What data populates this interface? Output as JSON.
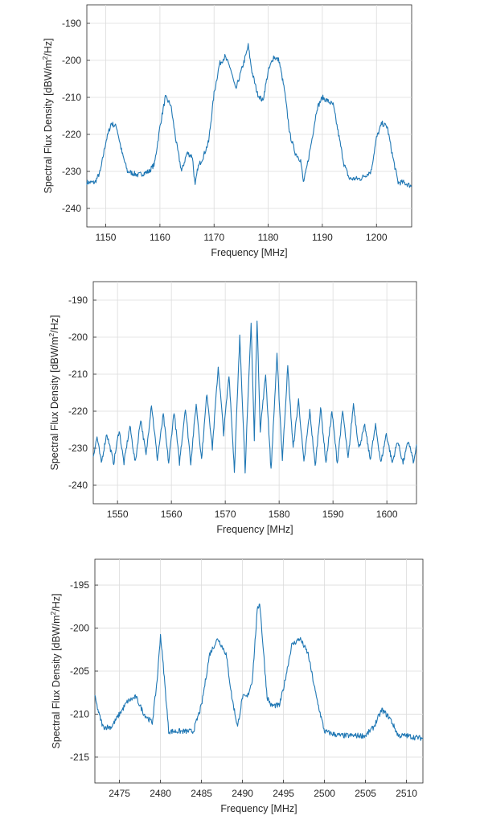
{
  "colors": {
    "trace": "#1f77b4",
    "axis": "#262626",
    "grid": "#dcdcdc"
  },
  "chart_data": [
    {
      "type": "line",
      "xlabel": "Frequency [MHz]",
      "ylabel_pre": "Spectral Flux Density [dBW/m",
      "ylabel_sup": "2",
      "ylabel_post": "/Hz]",
      "xlim": [
        1146.5,
        1206.5
      ],
      "ylim": [
        -245,
        -185
      ],
      "xticks": [
        1150,
        1160,
        1170,
        1180,
        1190,
        1200
      ],
      "yticks": [
        -240,
        -230,
        -220,
        -210,
        -200,
        -190
      ],
      "grid": true,
      "series": [
        {
          "x": [
            1146.5,
            1148,
            1149,
            1150,
            1151,
            1152,
            1153,
            1154,
            1156,
            1158,
            1159,
            1160,
            1161,
            1162,
            1163,
            1164,
            1165,
            1166,
            1166.5,
            1167,
            1168,
            1169,
            1170,
            1171,
            1172,
            1173,
            1174,
            1175,
            1176,
            1176.3,
            1177,
            1178,
            1179,
            1180,
            1181,
            1182,
            1183,
            1184,
            1185,
            1186,
            1186.5,
            1187,
            1188,
            1189,
            1190,
            1191,
            1192,
            1193,
            1194,
            1195,
            1197,
            1199,
            1200,
            1201,
            1202,
            1203,
            1204,
            1205,
            1206.5
          ],
          "y": [
            -233,
            -233,
            -230,
            -222,
            -217,
            -218,
            -225,
            -230,
            -231,
            -230,
            -228,
            -218,
            -210,
            -212,
            -222,
            -230,
            -225,
            -226,
            -234,
            -229,
            -226,
            -222,
            -209,
            -201,
            -199,
            -202,
            -208,
            -203,
            -198,
            -196,
            -203,
            -209,
            -211,
            -203,
            -199,
            -200,
            -208,
            -220,
            -225,
            -227,
            -233,
            -230,
            -222,
            -213,
            -210,
            -211,
            -212,
            -220,
            -228,
            -232,
            -232,
            -230,
            -221,
            -217,
            -218,
            -226,
            -233,
            -233,
            -234
          ]
        }
      ]
    },
    {
      "type": "line",
      "xlabel": "Frequency [MHz]",
      "ylabel_pre": "Spectral Flux Density [dBW/m",
      "ylabel_sup": "2",
      "ylabel_post": "/Hz]",
      "xlim": [
        1545.5,
        1605.5
      ],
      "ylim": [
        -245,
        -185
      ],
      "xticks": [
        1550,
        1560,
        1570,
        1580,
        1590,
        1600
      ],
      "yticks": [
        -240,
        -230,
        -220,
        -210,
        -200,
        -190
      ],
      "grid": true,
      "series": [
        {
          "x": [
            1545.5,
            1546.2,
            1547.0,
            1548.0,
            1549.3,
            1550.3,
            1551.2,
            1552.3,
            1553.3,
            1554.3,
            1555.3,
            1556.3,
            1557.4,
            1558.5,
            1559.5,
            1560.5,
            1561.5,
            1562.6,
            1563.6,
            1564.6,
            1565.6,
            1566.6,
            1567.6,
            1568.7,
            1569.7,
            1570.7,
            1571.7,
            1572.7,
            1573.7,
            1574.8,
            1575.4,
            1575.9,
            1576.5,
            1577.5,
            1578.5,
            1579.6,
            1580.6,
            1581.6,
            1582.6,
            1583.6,
            1584.6,
            1585.7,
            1586.7,
            1587.7,
            1588.7,
            1589.8,
            1590.8,
            1591.8,
            1592.8,
            1593.8,
            1594.8,
            1595.9,
            1596.9,
            1597.9,
            1598.9,
            1599.9,
            1601.0,
            1602.0,
            1603.0,
            1604.0,
            1605.0,
            1605.5
          ],
          "y": [
            -232,
            -227,
            -234,
            -226,
            -234,
            -225,
            -234,
            -224,
            -234,
            -222,
            -232,
            -218,
            -233,
            -221,
            -234,
            -220,
            -234,
            -219,
            -234,
            -218,
            -233,
            -215,
            -230,
            -208,
            -226,
            -210,
            -236,
            -200,
            -236,
            -196,
            -228,
            -195,
            -225,
            -210,
            -236,
            -205,
            -233,
            -208,
            -230,
            -217,
            -234,
            -220,
            -235,
            -219,
            -234,
            -220,
            -234,
            -220,
            -233,
            -218,
            -230,
            -224,
            -233,
            -224,
            -234,
            -226,
            -234,
            -228,
            -234,
            -228,
            -234,
            -229
          ]
        }
      ]
    },
    {
      "type": "line",
      "xlabel": "Frequency [MHz]",
      "ylabel_pre": "Spectral Flux Density [dBW/m",
      "ylabel_sup": "2",
      "ylabel_post": "/Hz]",
      "xlim": [
        2472,
        2512
      ],
      "ylim": [
        -218,
        -192
      ],
      "xticks": [
        2475,
        2480,
        2485,
        2490,
        2495,
        2500,
        2505,
        2510
      ],
      "yticks": [
        -215,
        -210,
        -205,
        -200,
        -195
      ],
      "grid": true,
      "series": [
        {
          "x": [
            2472,
            2472.5,
            2473,
            2474,
            2475,
            2476,
            2477,
            2478,
            2479,
            2479.6,
            2480,
            2480.4,
            2481,
            2482,
            2483,
            2484,
            2485,
            2486,
            2487,
            2488,
            2488.7,
            2489.4,
            2490,
            2490.6,
            2491.2,
            2491.8,
            2492.1,
            2492.5,
            2493,
            2493.5,
            2494,
            2494.5,
            2495,
            2496,
            2497,
            2498,
            2499,
            2500,
            2501,
            2502,
            2503,
            2504,
            2505,
            2506,
            2507,
            2508,
            2509,
            2510,
            2511,
            2512
          ],
          "y": [
            -208,
            -210,
            -211.5,
            -211.5,
            -210,
            -208.5,
            -208,
            -210,
            -211,
            -206,
            -200.8,
            -205,
            -212,
            -212,
            -212,
            -212,
            -209,
            -203,
            -201.2,
            -203,
            -208,
            -211.5,
            -208,
            -208,
            -206,
            -198,
            -197,
            -202,
            -208,
            -209,
            -209,
            -209,
            -207,
            -202,
            -201.2,
            -203,
            -208,
            -212,
            -212.3,
            -212.5,
            -212.5,
            -212.5,
            -212.5,
            -211.5,
            -209.5,
            -210.5,
            -212.5,
            -212.5,
            -212.7,
            -212.8
          ]
        }
      ]
    }
  ]
}
